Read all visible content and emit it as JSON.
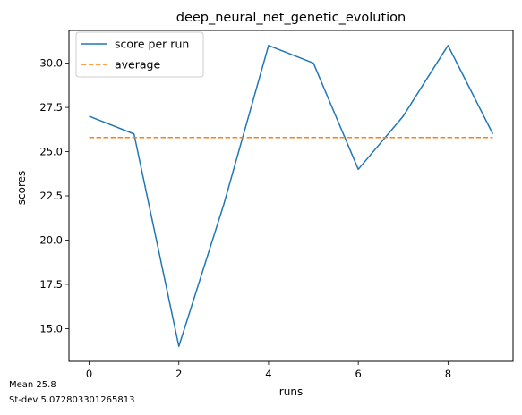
{
  "chart_data": {
    "type": "line",
    "title": "deep_neural_net_genetic_evolution",
    "xlabel": "runs",
    "ylabel": "scores",
    "x": [
      0,
      1,
      2,
      3,
      4,
      5,
      6,
      7,
      8,
      9
    ],
    "x_ticks": [
      0,
      2,
      4,
      6,
      8
    ],
    "x_tick_labels": [
      "0",
      "2",
      "4",
      "6",
      "8"
    ],
    "xlim": [
      -0.45,
      9.45
    ],
    "y_ticks": [
      15.0,
      17.5,
      20.0,
      22.5,
      25.0,
      27.5,
      30.0
    ],
    "y_tick_labels": [
      "15.0",
      "17.5",
      "20.0",
      "22.5",
      "25.0",
      "27.5",
      "30.0"
    ],
    "ylim": [
      13.15,
      31.85
    ],
    "grid": false,
    "legend_position": "top-left",
    "series": [
      {
        "name": "score per run",
        "style": "solid",
        "color": "#1f77b4",
        "values": [
          27,
          26,
          14,
          22,
          31,
          30,
          24,
          27,
          31,
          26
        ]
      },
      {
        "name": "average",
        "style": "dashed",
        "color": "#ff7f0e",
        "values": [
          25.8,
          25.8,
          25.8,
          25.8,
          25.8,
          25.8,
          25.8,
          25.8,
          25.8,
          25.8
        ]
      }
    ]
  },
  "footer": {
    "mean": "Mean 25.8",
    "stdev": "St-dev 5.072803301265813"
  }
}
